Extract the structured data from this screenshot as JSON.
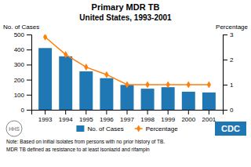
{
  "chart_data": {
    "type": "bar",
    "title": "Primary MDR TB",
    "subtitle": "United States, 1993-2001",
    "categories": [
      "1993",
      "1994",
      "1995",
      "1996",
      "1997",
      "1998",
      "1999",
      "2000",
      "2001"
    ],
    "series": [
      {
        "name": "No. of Cases",
        "type": "bar",
        "values": [
          410,
          355,
          255,
          210,
          165,
          140,
          150,
          120,
          115
        ]
      },
      {
        "name": "Percentage",
        "type": "line",
        "marker": "diamond",
        "axis": "y2",
        "values": [
          2.9,
          2.2,
          1.7,
          1.4,
          1.0,
          1.0,
          1.0,
          1.0,
          1.0
        ]
      }
    ],
    "y_label": "No. of Cases",
    "y2_label": "Percentage",
    "ylim": [
      0,
      500
    ],
    "yticks": [
      0,
      100,
      200,
      300,
      400,
      500
    ],
    "y2lim": [
      0,
      3
    ],
    "y2ticks": [
      0,
      1,
      2,
      3
    ],
    "grid": false,
    "legend": "bottom",
    "annotations": [
      "Note: Based on initial isolates from persons with no prior history of TB.",
      "MDR TB defined as resistance to at least isoniazid and rifampin",
      "CDC",
      "HHS"
    ]
  }
}
